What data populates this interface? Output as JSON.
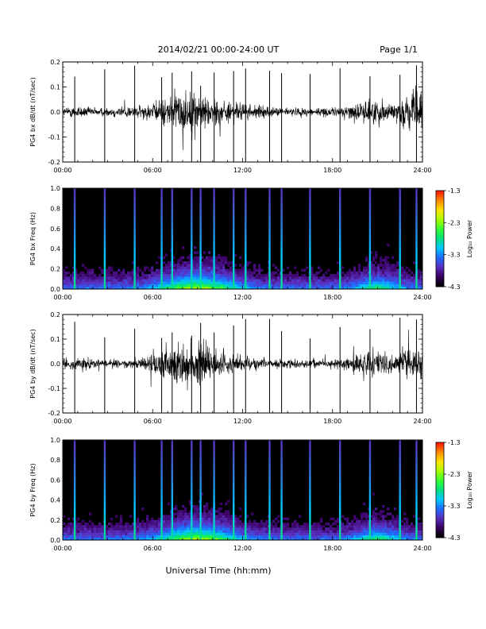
{
  "header": {
    "title": "2014/02/21  00:00-24:00 UT",
    "page": "Page 1/1"
  },
  "footer": {
    "xlabel": "Universal Time (hh:mm)"
  },
  "colors": {
    "trace": "#000000",
    "background": "#ffffff",
    "colormap": [
      "#000000",
      "#3a0060",
      "#5a2fbf",
      "#1f6bff",
      "#00c8ff",
      "#00e080",
      "#33ff33",
      "#a8ff00",
      "#ffe600",
      "#ff8c00",
      "#ff1a00"
    ]
  },
  "chart_data": [
    {
      "type": "line",
      "ylabel": "PG4 bx dB/dt (nT/sec)",
      "xlim": [
        0,
        24
      ],
      "ylim": [
        -0.2,
        0.2
      ],
      "xticks": [
        "00:00",
        "06:00",
        "12:00",
        "18:00",
        "24:00"
      ],
      "yticks": [
        "0.2",
        "0.1",
        "0.0",
        "-0.1",
        "-0.2"
      ],
      "spikes_hours": [
        0.8,
        2.8,
        4.8,
        6.6,
        7.3,
        8.6,
        9.2,
        10.1,
        11.4,
        12.2,
        13.8,
        14.6,
        16.5,
        18.5,
        20.5,
        22.5,
        23.6
      ],
      "envelope": [
        [
          0,
          0.02
        ],
        [
          1,
          0.03
        ],
        [
          2,
          0.02
        ],
        [
          3,
          0.02
        ],
        [
          4,
          0.03
        ],
        [
          5,
          0.03
        ],
        [
          6,
          0.04
        ],
        [
          7,
          0.07
        ],
        [
          8,
          0.1
        ],
        [
          9,
          0.09
        ],
        [
          10,
          0.07
        ],
        [
          11,
          0.05
        ],
        [
          12,
          0.04
        ],
        [
          13,
          0.03
        ],
        [
          14,
          0.02
        ],
        [
          15,
          0.02
        ],
        [
          16,
          0.02
        ],
        [
          17,
          0.02
        ],
        [
          18,
          0.02
        ],
        [
          19,
          0.03
        ],
        [
          20,
          0.05
        ],
        [
          21,
          0.06
        ],
        [
          22,
          0.04
        ],
        [
          23,
          0.08
        ],
        [
          24,
          0.1
        ]
      ]
    },
    {
      "type": "heatmap",
      "ylabel": "PG4 bx Freq (Hz)",
      "xlim": [
        0,
        24
      ],
      "ylim": [
        0,
        1.0
      ],
      "xticks": [
        "00:00",
        "06:00",
        "12:00",
        "18:00",
        "24:00"
      ],
      "yticks": [
        "1.0",
        "0.8",
        "0.6",
        "0.4",
        "0.2",
        "0.0"
      ],
      "colorbar_label": "Log₁₀ Power",
      "colorbar_range": [
        -4.3,
        -1.3
      ],
      "colorbar_ticks": [
        "-1.3",
        "-2.3",
        "-3.3",
        "-4.3"
      ],
      "spikes_hours": [
        0.8,
        2.8,
        4.8,
        6.6,
        7.3,
        8.6,
        9.2,
        10.1,
        11.4,
        12.2,
        13.8,
        14.6,
        16.5,
        18.5,
        20.5,
        22.5,
        23.6
      ]
    },
    {
      "type": "line",
      "ylabel": "PG4 by dB/dt (nT/sec)",
      "xlim": [
        0,
        24
      ],
      "ylim": [
        -0.2,
        0.2
      ],
      "xticks": [
        "00:00",
        "06:00",
        "12:00",
        "18:00",
        "24:00"
      ],
      "yticks": [
        "0.2",
        "0.1",
        "0.0",
        "-0.1",
        "-0.2"
      ],
      "spikes_hours": [
        0.8,
        2.8,
        4.8,
        6.6,
        7.3,
        8.6,
        9.2,
        10.1,
        11.4,
        12.2,
        13.8,
        14.6,
        16.5,
        18.5,
        20.5,
        22.5,
        23.6
      ],
      "envelope": [
        [
          0,
          0.02
        ],
        [
          1,
          0.03
        ],
        [
          2,
          0.02
        ],
        [
          3,
          0.02
        ],
        [
          4,
          0.02
        ],
        [
          5,
          0.03
        ],
        [
          6,
          0.05
        ],
        [
          7,
          0.08
        ],
        [
          8,
          0.11
        ],
        [
          9,
          0.1
        ],
        [
          10,
          0.07
        ],
        [
          11,
          0.05
        ],
        [
          12,
          0.04
        ],
        [
          13,
          0.03
        ],
        [
          14,
          0.02
        ],
        [
          15,
          0.02
        ],
        [
          16,
          0.02
        ],
        [
          17,
          0.02
        ],
        [
          18,
          0.02
        ],
        [
          19,
          0.03
        ],
        [
          20,
          0.05
        ],
        [
          21,
          0.06
        ],
        [
          22,
          0.04
        ],
        [
          23,
          0.07
        ],
        [
          24,
          0.08
        ]
      ]
    },
    {
      "type": "heatmap",
      "ylabel": "PG4 by Freq (Hz)",
      "xlim": [
        0,
        24
      ],
      "ylim": [
        0,
        1.0
      ],
      "xticks": [
        "00:00",
        "06:00",
        "12:00",
        "18:00",
        "24:00"
      ],
      "yticks": [
        "1.0",
        "0.8",
        "0.6",
        "0.4",
        "0.2",
        "0.0"
      ],
      "colorbar_label": "Log₁₀ Power",
      "colorbar_range": [
        -4.3,
        -1.3
      ],
      "colorbar_ticks": [
        "-1.3",
        "-2.3",
        "-3.3",
        "-4.3"
      ],
      "spikes_hours": [
        0.8,
        2.8,
        4.8,
        6.6,
        7.3,
        8.6,
        9.2,
        10.1,
        11.4,
        12.2,
        13.8,
        14.6,
        16.5,
        18.5,
        20.5,
        22.5,
        23.6
      ]
    }
  ]
}
